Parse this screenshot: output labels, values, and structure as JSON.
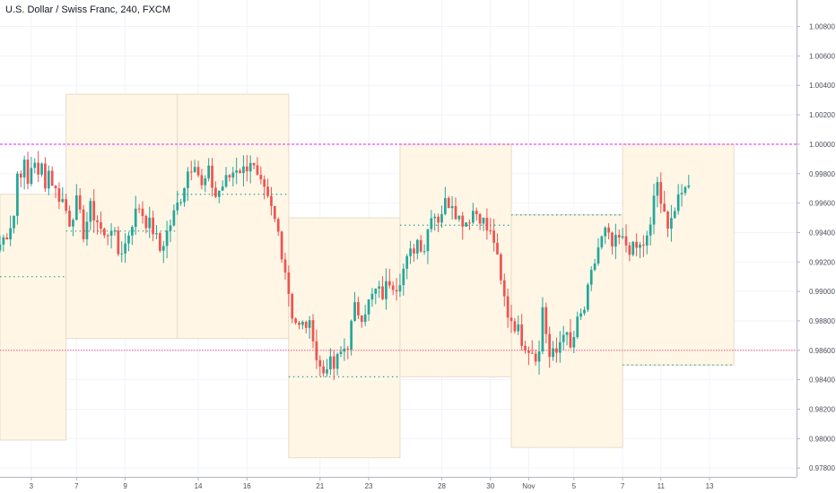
{
  "header": {
    "symbol_title": "U.S. Dollar / Swiss Franc, 240, FXCM"
  },
  "colors": {
    "up_candle": "#26a69a",
    "down_candle": "#ef5350",
    "box_fill": "#fff6e6",
    "box_border": "#e8dcc8",
    "magenta_line": "#e040fb",
    "red_level": "#f06292",
    "grid": "#f0f3fa",
    "axis_text": "#4a4e59",
    "dotted_level": "#26a69a"
  },
  "chart_data": {
    "type": "candlestick",
    "title": "U.S. Dollar / Swiss Franc, 240, FXCM",
    "y_axis": {
      "ylim": [
        0.9774,
        1.0098
      ],
      "ticks": [
        "1.00800",
        "1.00600",
        "1.00400",
        "1.00200",
        "1.00000",
        "0.99800",
        "0.99600",
        "0.99400",
        "0.99200",
        "0.99000",
        "0.98800",
        "0.98600",
        "0.98400",
        "0.98200",
        "0.98000",
        "0.97800"
      ],
      "tick_values": [
        1.008,
        1.006,
        1.004,
        1.002,
        1.0,
        0.998,
        0.996,
        0.994,
        0.992,
        0.99,
        0.988,
        0.986,
        0.984,
        0.982,
        0.98,
        0.978
      ],
      "position": "right"
    },
    "x_axis": {
      "bar_range": [
        -8,
        221
      ],
      "tick_labels": [
        "3",
        "7",
        "9",
        "14",
        "16",
        "21",
        "23",
        "28",
        "30",
        "Nov",
        "5",
        "7",
        "11",
        "13"
      ],
      "tick_bars": [
        1,
        14,
        28,
        49,
        63,
        84,
        98,
        119,
        133,
        144,
        157,
        171,
        182,
        196
      ]
    },
    "horizontal_lines": [
      {
        "value": 1.0,
        "style": "dashed",
        "color": "#e040fb"
      },
      {
        "value": 0.986,
        "style": "dotted",
        "color": "#f06292"
      }
    ],
    "weekly_boxes": [
      {
        "start_bar": -8,
        "end_bar": 11,
        "high": 0.9966,
        "low": 0.9799,
        "mid": 0.991
      },
      {
        "start_bar": 11,
        "end_bar": 43,
        "high": 1.0034,
        "low": 0.9868,
        "mid": 0.9941
      },
      {
        "start_bar": 43,
        "end_bar": 75,
        "high": 1.0034,
        "low": 0.9868,
        "mid": 0.9966
      },
      {
        "start_bar": 75,
        "end_bar": 107,
        "high": 0.995,
        "low": 0.9787,
        "mid": 0.9842
      },
      {
        "start_bar": 107,
        "end_bar": 139,
        "high": 1.0,
        "low": 0.9842,
        "mid": 0.9945
      },
      {
        "start_bar": 139,
        "end_bar": 171,
        "high": 0.9952,
        "low": 0.9794,
        "mid": 0.9952
      },
      {
        "start_bar": 171,
        "end_bar": 203,
        "high": 1.0,
        "low": 0.985,
        "mid": 0.985
      }
    ],
    "waypoints": [
      [
        -8,
        0.9932
      ],
      [
        -6,
        0.994
      ],
      [
        -4,
        0.9952
      ],
      [
        -3,
        0.998
      ],
      [
        -1,
        0.9985
      ],
      [
        0,
        0.9972
      ],
      [
        1,
        0.9985
      ],
      [
        2,
        0.999
      ],
      [
        3,
        0.9976
      ],
      [
        4,
        0.9985
      ],
      [
        5,
        0.9975
      ],
      [
        6,
        0.9982
      ],
      [
        8,
        0.9968
      ],
      [
        10,
        0.9962
      ],
      [
        12,
        0.9948
      ],
      [
        14,
        0.996
      ],
      [
        16,
        0.994
      ],
      [
        18,
        0.9956
      ],
      [
        20,
        0.9948
      ],
      [
        22,
        0.9936
      ],
      [
        24,
        0.9945
      ],
      [
        26,
        0.9926
      ],
      [
        28,
        0.9932
      ],
      [
        30,
        0.9948
      ],
      [
        32,
        0.9958
      ],
      [
        34,
        0.9948
      ],
      [
        36,
        0.9942
      ],
      [
        38,
        0.9928
      ],
      [
        40,
        0.994
      ],
      [
        42,
        0.9952
      ],
      [
        44,
        0.9965
      ],
      [
        46,
        0.9982
      ],
      [
        48,
        0.999
      ],
      [
        50,
        0.997
      ],
      [
        52,
        0.998
      ],
      [
        54,
        0.9965
      ],
      [
        56,
        0.9972
      ],
      [
        58,
        0.9978
      ],
      [
        60,
        0.9985
      ],
      [
        62,
        0.9982
      ],
      [
        64,
        0.999
      ],
      [
        66,
        0.9975
      ],
      [
        68,
        0.9966
      ],
      [
        70,
        0.9955
      ],
      [
        72,
        0.994
      ],
      [
        74,
        0.9915
      ],
      [
        75,
        0.99
      ],
      [
        76,
        0.9885
      ],
      [
        78,
        0.9875
      ],
      [
        80,
        0.9878
      ],
      [
        82,
        0.9872
      ],
      [
        83,
        0.9855
      ],
      [
        84,
        0.9848
      ],
      [
        85,
        0.9845
      ],
      [
        86,
        0.9852
      ],
      [
        88,
        0.9848
      ],
      [
        90,
        0.9858
      ],
      [
        92,
        0.9865
      ],
      [
        94,
        0.9888
      ],
      [
        96,
        0.9885
      ],
      [
        98,
        0.9892
      ],
      [
        100,
        0.99
      ],
      [
        102,
        0.9898
      ],
      [
        104,
        0.9908
      ],
      [
        106,
        0.9905
      ],
      [
        108,
        0.9915
      ],
      [
        110,
        0.9925
      ],
      [
        112,
        0.9935
      ],
      [
        114,
        0.993
      ],
      [
        116,
        0.9955
      ],
      [
        118,
        0.995
      ],
      [
        120,
        0.996
      ],
      [
        122,
        0.9962
      ],
      [
        123,
        0.9955
      ],
      [
        124,
        0.995
      ],
      [
        126,
        0.9948
      ],
      [
        128,
        0.9955
      ],
      [
        130,
        0.9952
      ],
      [
        132,
        0.9942
      ],
      [
        134,
        0.9935
      ],
      [
        135,
        0.992
      ],
      [
        136,
        0.9905
      ],
      [
        138,
        0.9885
      ],
      [
        140,
        0.9878
      ],
      [
        142,
        0.9868
      ],
      [
        144,
        0.9862
      ],
      [
        146,
        0.9858
      ],
      [
        147,
        0.9858
      ],
      [
        148,
        0.989
      ],
      [
        150,
        0.9855
      ],
      [
        152,
        0.9858
      ],
      [
        154,
        0.9875
      ],
      [
        156,
        0.986
      ],
      [
        158,
        0.9878
      ],
      [
        160,
        0.9888
      ],
      [
        162,
        0.991
      ],
      [
        164,
        0.993
      ],
      [
        166,
        0.994
      ],
      [
        168,
        0.993
      ],
      [
        170,
        0.9935
      ],
      [
        172,
        0.9932
      ],
      [
        174,
        0.9928
      ],
      [
        176,
        0.993
      ],
      [
        178,
        0.9935
      ],
      [
        179,
        0.9942
      ],
      [
        180,
        0.9965
      ],
      [
        181,
        0.9975
      ],
      [
        182,
        0.9955
      ],
      [
        184,
        0.9948
      ],
      [
        186,
        0.9955
      ],
      [
        188,
        0.9965
      ],
      [
        189,
        0.9975
      ],
      [
        190,
        0.9972
      ]
    ]
  }
}
